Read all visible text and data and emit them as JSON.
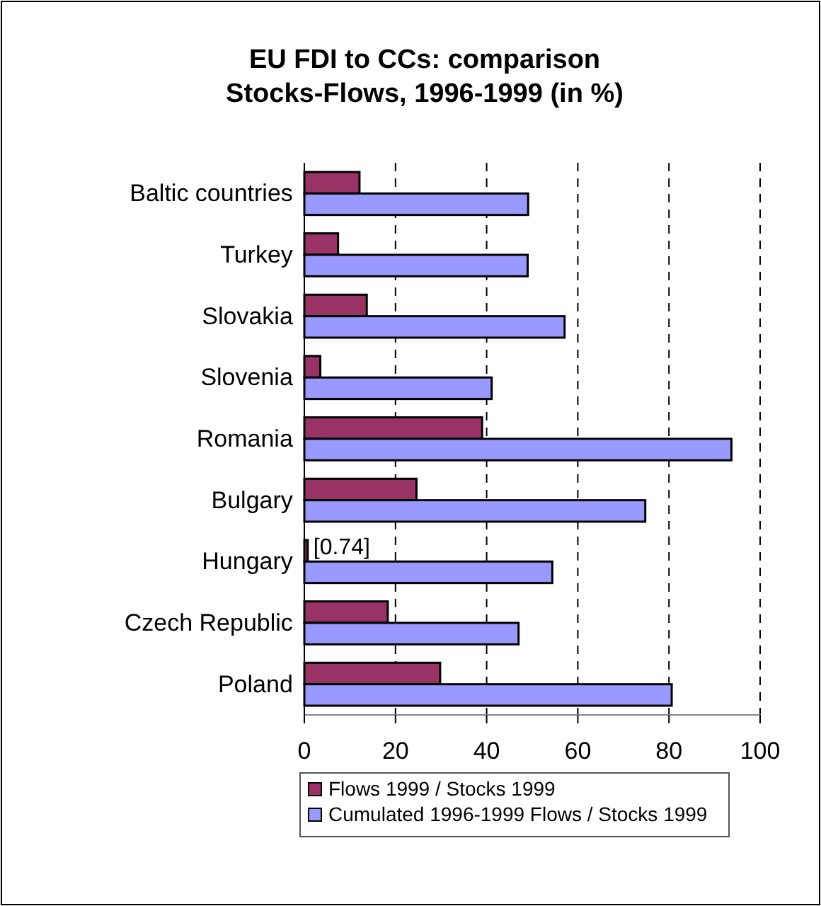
{
  "chart_data": {
    "type": "bar",
    "orientation": "horizontal",
    "title": "EU FDI to CCs: comparison Stocks-Flows, 1996-1999 (in %)",
    "categories": [
      "Baltic countries",
      "Turkey",
      "Slovakia",
      "Slovenia",
      "Romania",
      "Bulgary",
      "Hungary",
      "Czech Republic",
      "Poland"
    ],
    "series": [
      {
        "name": "Flows 1999 / Stocks 1999",
        "color": "#993366",
        "values": [
          12.1,
          7.4,
          13.7,
          3.5,
          39,
          24.6,
          0.74,
          18.3,
          29.8
        ],
        "value_labels": [
          null,
          null,
          null,
          null,
          null,
          null,
          "[0.74]",
          null,
          null
        ]
      },
      {
        "name": "Cumulated 1996-1999 Flows / Stocks 1999",
        "color": "#9999ff",
        "values": [
          49.1,
          49,
          57.1,
          41.1,
          93.7,
          74.8,
          54.4,
          47,
          80.6
        ]
      }
    ],
    "xlim": [
      0,
      100
    ],
    "xticks": [
      0,
      20,
      40,
      60,
      80,
      100
    ],
    "grid": "x",
    "legend": "bottom"
  }
}
